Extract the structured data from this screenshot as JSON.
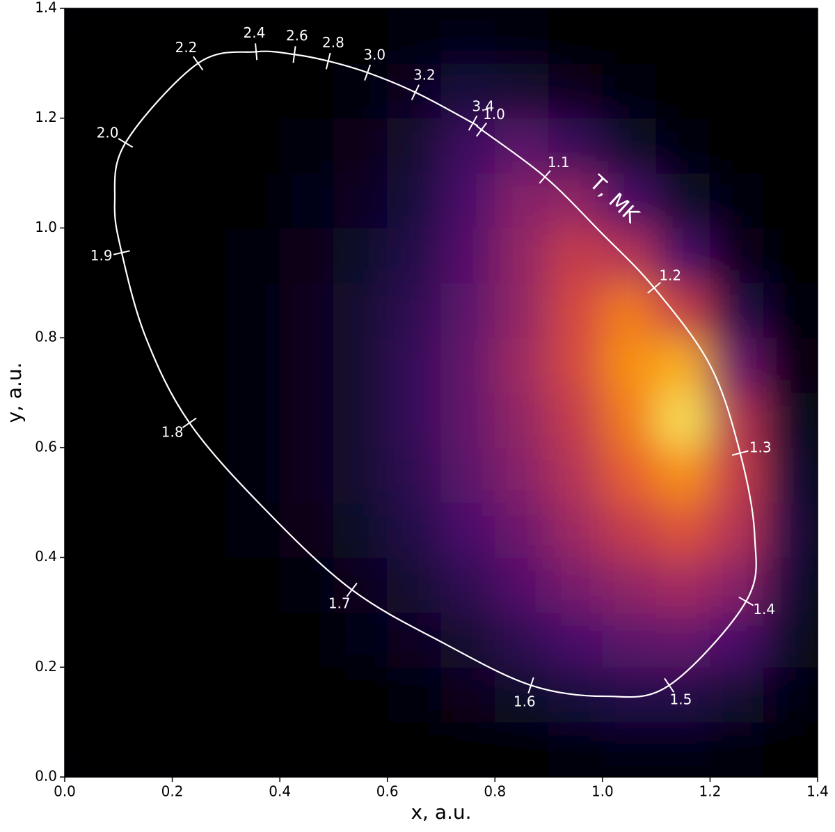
{
  "chart_data": {
    "type": "heatmap",
    "xlabel": "x, a.u.",
    "ylabel": "y, a.u.",
    "annotation": "T, MK",
    "colormap": "inferno",
    "xlim": [
      0,
      1.4
    ],
    "ylim": [
      0,
      1.4
    ],
    "xticks": [
      {
        "value": 0,
        "label": "0.0"
      },
      {
        "value": 0.2,
        "label": "0.2"
      },
      {
        "value": 0.4,
        "label": "0.4"
      },
      {
        "value": 0.6,
        "label": "0.6"
      },
      {
        "value": 0.8,
        "label": "0.8"
      },
      {
        "value": 1.0,
        "label": "1.0"
      },
      {
        "value": 1.2,
        "label": "1.2"
      },
      {
        "value": 1.4,
        "label": "1.4"
      }
    ],
    "yticks": [
      {
        "value": 0,
        "label": "0.0"
      },
      {
        "value": 0.2,
        "label": "0.2"
      },
      {
        "value": 0.4,
        "label": "0.4"
      },
      {
        "value": 0.6,
        "label": "0.6"
      },
      {
        "value": 0.8,
        "label": "0.8"
      },
      {
        "value": 1.0,
        "label": "1.0"
      },
      {
        "value": 1.2,
        "label": "1.2"
      },
      {
        "value": 1.4,
        "label": "1.4"
      }
    ],
    "xbins": [
      0,
      0.1,
      0.2,
      0.3,
      0.4,
      0.5,
      0.6,
      0.7,
      0.8,
      0.9,
      1.0,
      1.1,
      1.2,
      1.3,
      1.4
    ],
    "ybins": [
      0,
      0.1,
      0.2,
      0.3,
      0.4,
      0.5,
      0.6,
      0.7,
      0.8,
      0.9,
      1.0,
      1.1,
      1.2,
      1.3,
      1.4
    ],
    "z": [
      [
        0,
        0,
        0,
        0,
        0,
        0,
        0,
        0,
        0,
        0.02,
        0.03,
        0.03,
        0.02,
        0
      ],
      [
        0,
        0,
        0,
        0,
        0,
        0,
        0.02,
        0.05,
        0.08,
        0.12,
        0.15,
        0.15,
        0.1,
        0.03
      ],
      [
        0,
        0,
        0,
        0,
        0,
        0.03,
        0.06,
        0.1,
        0.18,
        0.25,
        0.3,
        0.32,
        0.25,
        0.08
      ],
      [
        0,
        0,
        0,
        0,
        0.02,
        0.05,
        0.1,
        0.18,
        0.28,
        0.38,
        0.45,
        0.5,
        0.42,
        0.12
      ],
      [
        0,
        0,
        0,
        0.02,
        0.04,
        0.08,
        0.15,
        0.25,
        0.35,
        0.48,
        0.6,
        0.68,
        0.55,
        0.15
      ],
      [
        0,
        0,
        0,
        0.02,
        0.05,
        0.1,
        0.18,
        0.3,
        0.42,
        0.55,
        0.72,
        0.85,
        0.6,
        0.12
      ],
      [
        0,
        0,
        0,
        0.02,
        0.05,
        0.1,
        0.2,
        0.32,
        0.45,
        0.6,
        0.8,
        0.95,
        0.55,
        0.08
      ],
      [
        0,
        0,
        0,
        0.02,
        0.05,
        0.1,
        0.2,
        0.32,
        0.48,
        0.65,
        0.85,
        0.9,
        0.35,
        0.04
      ],
      [
        0,
        0,
        0,
        0.02,
        0.05,
        0.1,
        0.18,
        0.3,
        0.45,
        0.65,
        0.8,
        0.6,
        0.15,
        0.02
      ],
      [
        0,
        0,
        0,
        0.02,
        0.04,
        0.08,
        0.15,
        0.28,
        0.45,
        0.6,
        0.55,
        0.25,
        0.05,
        0
      ],
      [
        0,
        0,
        0,
        0,
        0.03,
        0.06,
        0.12,
        0.25,
        0.42,
        0.45,
        0.25,
        0.08,
        0.02,
        0
      ],
      [
        0,
        0,
        0,
        0,
        0.02,
        0.04,
        0.1,
        0.22,
        0.3,
        0.2,
        0.08,
        0.02,
        0,
        0
      ],
      [
        0,
        0,
        0,
        0,
        0,
        0.02,
        0.06,
        0.12,
        0.1,
        0.05,
        0.02,
        0,
        0,
        0
      ],
      [
        0,
        0,
        0,
        0,
        0,
        0,
        0.02,
        0.03,
        0.02,
        0,
        0,
        0,
        0,
        0
      ]
    ],
    "curve": {
      "color": "#ffffff",
      "x": [
        0.356,
        0.427,
        0.49,
        0.563,
        0.652,
        0.759,
        0.775,
        0.893,
        0.999,
        1.096,
        1.2,
        1.256,
        1.283,
        1.267,
        1.124,
        1.005,
        0.867,
        0.708,
        0.534,
        0.371,
        0.232,
        0.151,
        0.106,
        0.093,
        0.113,
        0.248
      ],
      "y": [
        1.321,
        1.316,
        1.304,
        1.283,
        1.247,
        1.191,
        1.179,
        1.093,
        0.99,
        0.891,
        0.75,
        0.59,
        0.439,
        0.32,
        0.167,
        0.147,
        0.167,
        0.242,
        0.341,
        0.489,
        0.645,
        0.8,
        0.955,
        1.047,
        1.155,
        1.3
      ]
    },
    "temperature_marks": [
      {
        "label": "2.4",
        "x": 0.356,
        "y": 1.321
      },
      {
        "label": "2.6",
        "x": 0.427,
        "y": 1.316
      },
      {
        "label": "2.8",
        "x": 0.49,
        "y": 1.304
      },
      {
        "label": "3.0",
        "x": 0.563,
        "y": 1.283
      },
      {
        "label": "3.2",
        "x": 0.652,
        "y": 1.247
      },
      {
        "label": "3.4",
        "x": 0.759,
        "y": 1.191
      },
      {
        "label": "1.0",
        "x": 0.775,
        "y": 1.179
      },
      {
        "label": "1.1",
        "x": 0.893,
        "y": 1.093
      },
      {
        "label": "1.2",
        "x": 1.096,
        "y": 0.891
      },
      {
        "label": "1.3",
        "x": 1.256,
        "y": 0.59
      },
      {
        "label": "1.4",
        "x": 1.267,
        "y": 0.32
      },
      {
        "label": "1.5",
        "x": 1.124,
        "y": 0.167
      },
      {
        "label": "1.6",
        "x": 0.867,
        "y": 0.167
      },
      {
        "label": "1.7",
        "x": 0.534,
        "y": 0.341
      },
      {
        "label": "1.8",
        "x": 0.232,
        "y": 0.645
      },
      {
        "label": "1.9",
        "x": 0.106,
        "y": 0.955
      },
      {
        "label": "2.0",
        "x": 0.113,
        "y": 1.155
      },
      {
        "label": "2.2",
        "x": 0.248,
        "y": 1.3
      }
    ]
  }
}
